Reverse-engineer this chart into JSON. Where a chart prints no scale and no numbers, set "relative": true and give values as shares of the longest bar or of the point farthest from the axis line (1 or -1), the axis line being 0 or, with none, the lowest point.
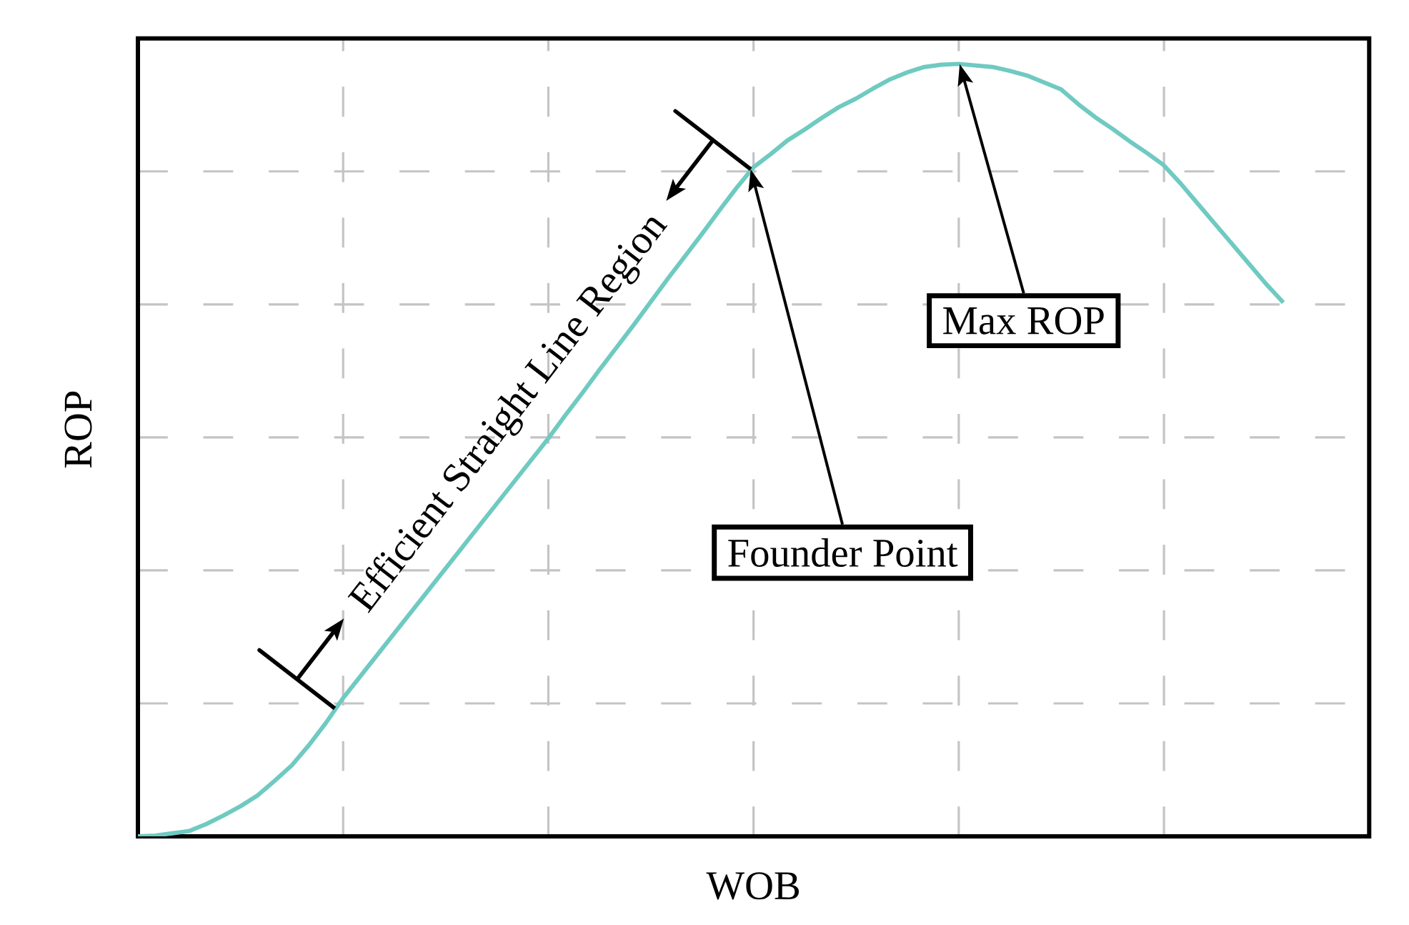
{
  "chart_data": {
    "type": "line",
    "relative": true,
    "xlabel": "WOB",
    "ylabel": "ROP",
    "categories": [
      null,
      null,
      null,
      null,
      null,
      null,
      null,
      null,
      null,
      null,
      null,
      null,
      null,
      null,
      null,
      null,
      null,
      null,
      null,
      null,
      null,
      null,
      null,
      null,
      null,
      null,
      null,
      null,
      null,
      null,
      null,
      null,
      null,
      null,
      null,
      null,
      null,
      null,
      null,
      null,
      null,
      null,
      null,
      null,
      null,
      null,
      null,
      null,
      null,
      null,
      null,
      null,
      null,
      null,
      null,
      null,
      null,
      null,
      null,
      null,
      null,
      null,
      null,
      null,
      null,
      null,
      null,
      null
    ],
    "series": [
      {
        "color": "#6fcac1",
        "values": [
          0,
          0.001,
          0.004,
          0.007,
          0.016,
          0.027,
          0.039,
          0.053,
          0.072,
          0.092,
          0.118,
          0.147,
          0.179,
          0.207,
          0.235,
          0.263,
          0.291,
          0.319,
          0.347,
          0.375,
          0.403,
          0.431,
          0.459,
          0.487,
          0.515,
          0.545,
          0.574,
          0.604,
          0.633,
          0.662,
          0.692,
          0.722,
          0.751,
          0.78,
          0.81,
          0.839,
          0.866,
          0.883,
          0.901,
          0.915,
          0.93,
          0.944,
          0.955,
          0.968,
          0.98,
          0.989,
          0.996,
          0.999,
          1,
          0.998,
          0.996,
          0.991,
          0.985,
          0.976,
          0.967,
          0.948,
          0.931,
          0.916,
          0.9,
          0.885,
          0.869,
          0.845,
          0.819,
          0.793,
          0.767,
          0.741,
          0.715,
          0.691
        ]
      }
    ],
    "grid": true,
    "annotations": [
      "Efficient Straight Line Region",
      "Founder Point",
      "Max ROP"
    ]
  }
}
